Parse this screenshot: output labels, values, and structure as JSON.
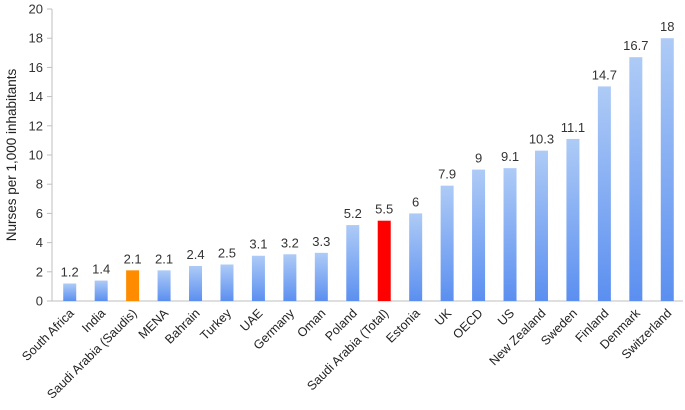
{
  "chart_data": {
    "type": "bar",
    "ylabel": "Nurses per 1,000 inhabitants",
    "xlabel": "",
    "title": "",
    "ylim": [
      0,
      20
    ],
    "yticks": [
      0,
      2,
      4,
      6,
      8,
      10,
      12,
      14,
      16,
      18,
      20
    ],
    "grid": false,
    "legend": "none",
    "categories": [
      "South Africa",
      "India",
      "Saudi Arabia (Saudis)",
      "MENA",
      "Bahrain",
      "Turkey",
      "UAE",
      "Germany",
      "Oman",
      "Poland",
      "Saudi Arabia (Total)",
      "Estonia",
      "UK",
      "OECD",
      "US",
      "New Zealand",
      "Sweden",
      "Finland",
      "Denmark",
      "Switzerland"
    ],
    "values": [
      1.2,
      1.4,
      2.1,
      2.1,
      2.4,
      2.5,
      3.1,
      3.2,
      3.3,
      5.2,
      5.5,
      6,
      7.9,
      9,
      9.1,
      10.3,
      11.1,
      14.7,
      16.7,
      18
    ],
    "value_labels": [
      "1.2",
      "1.4",
      "2.1",
      "2.1",
      "2.4",
      "2.5",
      "3.1",
      "3.2",
      "3.3",
      "5.2",
      "5.5",
      "6",
      "7.9",
      "9",
      "9.1",
      "10.3",
      "11.1",
      "14.7",
      "16.7",
      "18"
    ],
    "colors": {
      "default_bar_top": "#aecbf6",
      "default_bar_bottom": "#5b8ff0",
      "highlight_saudis": "#ff8c00",
      "highlight_total": "#ff0000",
      "axis": "#bfbfbf"
    },
    "highlights": {
      "Saudi Arabia (Saudis)": "highlight_saudis",
      "Saudi Arabia (Total)": "highlight_total"
    }
  }
}
